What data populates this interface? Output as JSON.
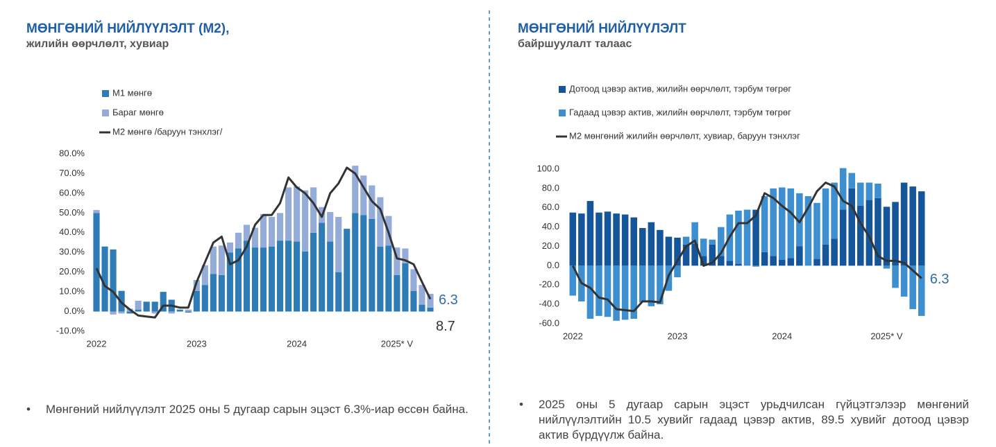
{
  "chart_data": [
    {
      "type": "bar",
      "title": "МӨНГӨНИЙ НИЙЛҮҮЛЭЛТ (М2),",
      "subtitle": "жилийн өөрчлөлт, хувиар",
      "categories": [
        "2022",
        null,
        null,
        null,
        null,
        null,
        null,
        null,
        null,
        null,
        null,
        null,
        "2023",
        null,
        null,
        null,
        null,
        null,
        null,
        null,
        null,
        null,
        null,
        null,
        "2024",
        null,
        null,
        null,
        null,
        null,
        null,
        null,
        null,
        null,
        null,
        null,
        "2025* V",
        null,
        null,
        null,
        null
      ],
      "series": [
        {
          "name": "М1 мөнгө",
          "type": "bar",
          "color": "#2f7bb5",
          "values": [
            50,
            33,
            31.5,
            10.5,
            -1,
            1,
            5,
            5,
            10,
            6,
            1,
            -0.5,
            10.5,
            13.5,
            19,
            18.5,
            30,
            32,
            36,
            32.5,
            32.5,
            33,
            36,
            36,
            35.5,
            30.5,
            40,
            45,
            35.5,
            20,
            42,
            50,
            49,
            47,
            33,
            33.5,
            18.5,
            24.5,
            10.5,
            3.5,
            2
          ]
        },
        {
          "name": "Бараг мөнгө",
          "type": "bar",
          "color": "#95acd9",
          "values": [
            1.5,
            0,
            -1.5,
            -1,
            1.5,
            4.5,
            0,
            -1,
            0,
            -1,
            0,
            1,
            5.5,
            10,
            14,
            15,
            5,
            8,
            8,
            10,
            17,
            15,
            14,
            27,
            28,
            31,
            23,
            8,
            15,
            28,
            0,
            24,
            20,
            17,
            25,
            15,
            14,
            7.5,
            11,
            10,
            7
          ]
        },
        {
          "name": "М2 мөнгө /баруун тэнхлэг/",
          "type": "line",
          "color": "#333333",
          "values": [
            22,
            13,
            10,
            4.5,
            1,
            -2,
            -2.5,
            -3,
            3,
            3,
            2,
            2,
            15,
            25,
            35,
            38,
            24,
            26,
            33,
            44,
            49,
            49,
            55,
            68,
            63,
            60,
            55,
            48,
            60,
            65,
            73,
            70,
            63,
            56,
            52,
            40,
            27,
            26,
            24,
            15,
            6.3
          ]
        }
      ],
      "ylim": [
        -10,
        80
      ],
      "yticks": [
        {
          "value": -10,
          "label": "-10.0%"
        },
        {
          "value": 0,
          "label": "0.0%"
        },
        {
          "value": 10,
          "label": "10.0%"
        },
        {
          "value": 20,
          "label": "20.0%"
        },
        {
          "value": 30,
          "label": "30.0%"
        },
        {
          "value": 40,
          "label": "40.0%"
        },
        {
          "value": 50,
          "label": "50.0%"
        },
        {
          "value": 60,
          "label": "60.0%"
        },
        {
          "value": 70,
          "label": "70.0%"
        },
        {
          "value": 80,
          "label": "80.0%"
        }
      ],
      "annotations": [
        "6.3",
        "8.7"
      ]
    },
    {
      "type": "bar",
      "title": "МӨНГӨНИЙ НИЙЛҮҮЛЭЛТ",
      "subtitle": "байршуулалт талаас",
      "categories": [
        "2022",
        null,
        null,
        null,
        null,
        null,
        null,
        null,
        null,
        null,
        null,
        null,
        "2023",
        null,
        null,
        null,
        null,
        null,
        null,
        null,
        null,
        null,
        null,
        null,
        "2024",
        null,
        null,
        null,
        null,
        null,
        null,
        null,
        null,
        null,
        null,
        null,
        "2025* V",
        null,
        null,
        null,
        null
      ],
      "series": [
        {
          "name": "Дотоод цэвэр актив, жилийн өөрчлөлт, тэрбум төгрөг",
          "type": "bar",
          "color": "#15569b",
          "values": [
            55,
            54,
            67,
            55,
            56,
            54,
            53,
            50,
            39,
            45,
            37,
            30,
            29,
            22,
            23,
            10,
            22,
            10,
            5,
            2,
            0,
            58,
            14,
            10,
            6,
            8,
            20,
            0,
            7,
            22,
            28,
            58,
            80,
            62,
            68,
            70,
            61,
            66,
            86,
            82,
            77
          ]
        },
        {
          "name": "Гадаад цэвэр актив, жилийн өөрчлөлт, тэрбум төгрөг",
          "type": "bar",
          "color": "#3e8fd0",
          "values": [
            -31,
            -37,
            -55,
            -52,
            -53,
            -57,
            -56,
            -55,
            -38,
            -42,
            -40,
            -26,
            -12,
            8,
            22,
            18,
            5,
            30,
            48,
            55,
            58,
            -1,
            58,
            70,
            75,
            72,
            55,
            72,
            58,
            58,
            58,
            43,
            16,
            24,
            18,
            15,
            -3,
            -23,
            -32,
            -45,
            -52
          ]
        },
        {
          "name": "М2 мөнгөний жилийн өөрчлөлт, хувиар, баруун тэнхлэг",
          "type": "line",
          "color": "#333333",
          "values": [
            0,
            -18,
            -23,
            -33,
            -35,
            -45,
            -46,
            -47,
            -37,
            -37,
            -38,
            -10,
            5,
            20,
            26,
            0,
            3,
            13,
            30,
            44,
            44,
            52,
            75,
            70,
            62,
            55,
            45,
            60,
            77,
            86,
            82,
            67,
            62,
            44,
            30,
            10,
            5,
            5,
            3,
            -5,
            -13
          ]
        }
      ],
      "ylim": [
        -60,
        100
      ],
      "yticks": [
        {
          "value": -60,
          "label": "-60.0"
        },
        {
          "value": -40,
          "label": "-40.0"
        },
        {
          "value": -20,
          "label": "-20.0"
        },
        {
          "value": 0,
          "label": "0.0"
        },
        {
          "value": 20,
          "label": "20.0"
        },
        {
          "value": 40,
          "label": "40.0"
        },
        {
          "value": 60,
          "label": "60.0"
        },
        {
          "value": 80,
          "label": "80.0"
        },
        {
          "value": 100,
          "label": "100.0"
        }
      ],
      "annotations": [
        "6.3"
      ]
    }
  ],
  "bullets": [
    "Мөнгөний нийлүүлэлт 2025 оны 5 дугаар сарын эцэст 6.3%-иар өссөн байна.",
    "2025 оны 5 дугаар сарын эцэст урьдчилсан гүйцэтгэлээр мөнгөний нийлүүлэлтийн 10.5 хувийг гадаад цэвэр актив, 89.5 хувийг дотоод цэвэр актив бүрдүүлж байна."
  ]
}
